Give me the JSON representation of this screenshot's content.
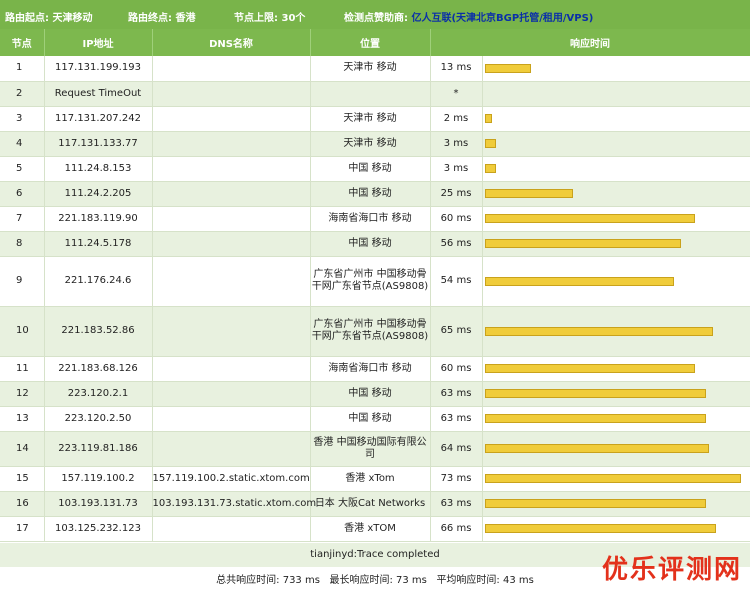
{
  "header": {
    "start_label": "路由起点:",
    "start_value": "天津移动",
    "end_label": "路由终点:",
    "end_value": "香港",
    "limit_label": "节点上限:",
    "limit_value": "30个",
    "source_label": "检测点赞助商:",
    "source_value": "亿人互联(天津北京BGP托管/租用/VPS)"
  },
  "columns": [
    "节点",
    "IP地址",
    "DNS名称",
    "位置",
    "响应时间"
  ],
  "rows": [
    {
      "hop": "1",
      "ip": "117.131.199.193",
      "dns": "",
      "loc": "天津市 移动",
      "time": "13 ms",
      "ms": 13,
      "h": 25
    },
    {
      "hop": "2",
      "ip": "Request TimeOut",
      "dns": "",
      "loc": "",
      "time": "*",
      "ms": 0,
      "h": 25
    },
    {
      "hop": "3",
      "ip": "117.131.207.242",
      "dns": "",
      "loc": "天津市 移动",
      "time": "2 ms",
      "ms": 2,
      "h": 25
    },
    {
      "hop": "4",
      "ip": "117.131.133.77",
      "dns": "",
      "loc": "天津市 移动",
      "time": "3 ms",
      "ms": 3,
      "h": 25
    },
    {
      "hop": "5",
      "ip": "111.24.8.153",
      "dns": "",
      "loc": "中国 移动",
      "time": "3 ms",
      "ms": 3,
      "h": 25
    },
    {
      "hop": "6",
      "ip": "111.24.2.205",
      "dns": "",
      "loc": "中国 移动",
      "time": "25 ms",
      "ms": 25,
      "h": 25
    },
    {
      "hop": "7",
      "ip": "221.183.119.90",
      "dns": "",
      "loc": "海南省海口市 移动",
      "time": "60 ms",
      "ms": 60,
      "h": 25
    },
    {
      "hop": "8",
      "ip": "111.24.5.178",
      "dns": "",
      "loc": "中国 移动",
      "time": "56 ms",
      "ms": 56,
      "h": 25
    },
    {
      "hop": "9",
      "ip": "221.176.24.6",
      "dns": "",
      "loc": "广东省广州市 中国移动骨干网广东省节点(AS9808)",
      "time": "54 ms",
      "ms": 54,
      "h": 50
    },
    {
      "hop": "10",
      "ip": "221.183.52.86",
      "dns": "",
      "loc": "广东省广州市 中国移动骨干网广东省节点(AS9808)",
      "time": "65 ms",
      "ms": 65,
      "h": 50
    },
    {
      "hop": "11",
      "ip": "221.183.68.126",
      "dns": "",
      "loc": "海南省海口市 移动",
      "time": "60 ms",
      "ms": 60,
      "h": 25
    },
    {
      "hop": "12",
      "ip": "223.120.2.1",
      "dns": "",
      "loc": "中国 移动",
      "time": "63 ms",
      "ms": 63,
      "h": 25
    },
    {
      "hop": "13",
      "ip": "223.120.2.50",
      "dns": "",
      "loc": "中国 移动",
      "time": "63 ms",
      "ms": 63,
      "h": 25
    },
    {
      "hop": "14",
      "ip": "223.119.81.186",
      "dns": "",
      "loc": "香港 中国移动国际有限公司",
      "time": "64 ms",
      "ms": 64,
      "h": 35
    },
    {
      "hop": "15",
      "ip": "157.119.100.2",
      "dns": "157.119.100.2.static.xtom.com",
      "loc": "香港 xTom",
      "time": "73 ms",
      "ms": 73,
      "h": 25
    },
    {
      "hop": "16",
      "ip": "103.193.131.73",
      "dns": "103.193.131.73.static.xtom.com",
      "loc": "日本 大阪Cat Networks",
      "time": "63 ms",
      "ms": 63,
      "h": 25
    },
    {
      "hop": "17",
      "ip": "103.125.232.123",
      "dns": "",
      "loc": "香港 xTOM",
      "time": "66 ms",
      "ms": 66,
      "h": 25
    }
  ],
  "bar_max_ms": 73,
  "footer": {
    "trace": "tianjinyd:Trace completed",
    "total_label": "总共响应时间:",
    "total_value": "733 ms",
    "max_label": "最长响应时间:",
    "max_value": "73 ms",
    "avg_label": "平均响应时间:",
    "avg_value": "43 ms"
  },
  "watermark": "优乐评测网",
  "colors": {
    "header_green": "#79b44a",
    "row_green": "#e8f1df",
    "bar_yellow": "#f0cc3a",
    "sponsor_blue": "#0a2fa8",
    "watermark_red": "#e3311b"
  }
}
